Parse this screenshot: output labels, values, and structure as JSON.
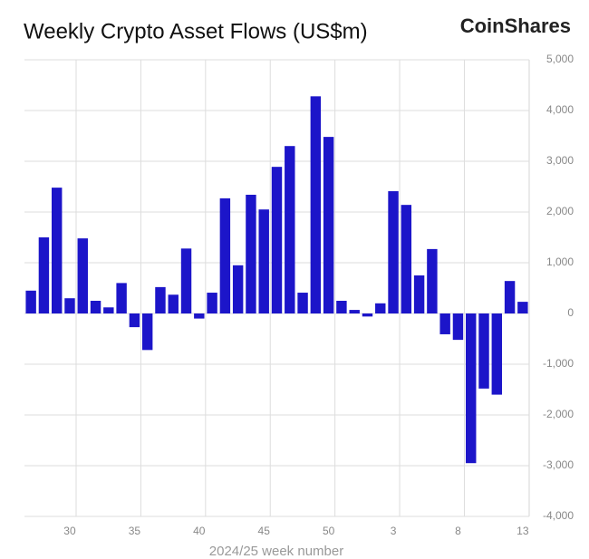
{
  "chart_data": {
    "type": "bar",
    "title": "Weekly Crypto Asset Flows (US$m)",
    "brand": "CoinShares",
    "x_label": "2024/25 week number",
    "categories": [
      null,
      null,
      null,
      "30",
      null,
      null,
      null,
      null,
      "35",
      null,
      null,
      null,
      null,
      "40",
      null,
      null,
      null,
      null,
      "45",
      null,
      null,
      null,
      null,
      "50",
      null,
      null,
      null,
      null,
      "3",
      null,
      null,
      null,
      null,
      "8",
      null,
      null,
      null,
      null,
      "13"
    ],
    "values": [
      450,
      1500,
      2480,
      300,
      1480,
      250,
      120,
      600,
      -270,
      -720,
      520,
      370,
      1280,
      -100,
      410,
      2270,
      950,
      2340,
      2050,
      2890,
      3300,
      410,
      4280,
      3480,
      250,
      70,
      -60,
      200,
      2410,
      2140,
      750,
      1270,
      -410,
      -520,
      -2950,
      -1480,
      -1600,
      640,
      230
    ],
    "color": "#1c15c9",
    "ylim": [
      -4000,
      5000
    ],
    "yticks": [
      {
        "value": -4000,
        "label": "-4,000"
      },
      {
        "value": -3000,
        "label": "-3,000"
      },
      {
        "value": -2000,
        "label": "-2,000"
      },
      {
        "value": -1000,
        "label": "-1,000"
      },
      0,
      {
        "value": 1000,
        "label": "1,000"
      },
      {
        "value": 2000,
        "label": "2,000"
      },
      {
        "value": 3000,
        "label": "3,000"
      },
      {
        "value": 4000,
        "label": "4,000"
      },
      {
        "value": 5000,
        "label": "5,000"
      }
    ],
    "grid": true
  }
}
